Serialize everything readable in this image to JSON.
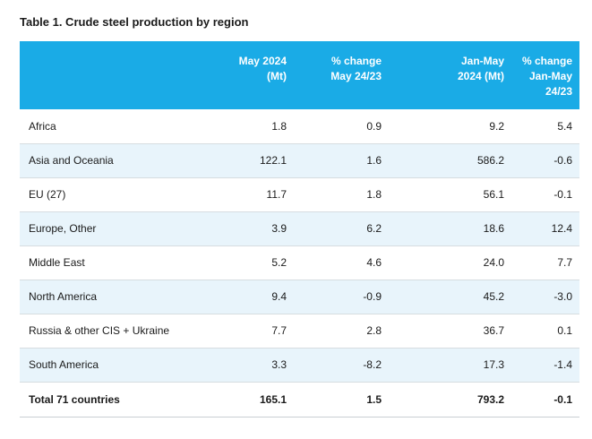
{
  "title": "Table 1. Crude steel production by region",
  "headers": [
    {
      "lines": []
    },
    {
      "lines": [
        "May 2024",
        "(Mt)"
      ]
    },
    {
      "lines": [
        "% change",
        "May 24/23"
      ]
    },
    {
      "lines": [
        "Jan-May",
        "2024 (Mt)"
      ]
    },
    {
      "lines": [
        "% change",
        "Jan-May",
        "24/23"
      ]
    }
  ],
  "rows": [
    {
      "region": "Africa",
      "may_2024": "1.8",
      "change_may": "0.9",
      "jan_may_2024": "9.2",
      "change_jan_may": "5.4"
    },
    {
      "region": "Asia and Oceania",
      "may_2024": "122.1",
      "change_may": "1.6",
      "jan_may_2024": "586.2",
      "change_jan_may": "-0.6"
    },
    {
      "region": "EU (27)",
      "may_2024": "11.7",
      "change_may": "1.8",
      "jan_may_2024": "56.1",
      "change_jan_may": "-0.1"
    },
    {
      "region": "Europe, Other",
      "may_2024": "3.9",
      "change_may": "6.2",
      "jan_may_2024": "18.6",
      "change_jan_may": "12.4"
    },
    {
      "region": "Middle East",
      "may_2024": "5.2",
      "change_may": "4.6",
      "jan_may_2024": "24.0",
      "change_jan_may": "7.7"
    },
    {
      "region": "North America",
      "may_2024": "9.4",
      "change_may": "-0.9",
      "jan_may_2024": "45.2",
      "change_jan_may": "-3.0"
    },
    {
      "region": "Russia & other CIS + Ukraine",
      "may_2024": "7.7",
      "change_may": "2.8",
      "jan_may_2024": "36.7",
      "change_jan_may": "0.1"
    },
    {
      "region": "South America",
      "may_2024": "3.3",
      "change_may": "-8.2",
      "jan_may_2024": "17.3",
      "change_jan_may": "-1.4"
    }
  ],
  "total": {
    "region": "Total 71 countries",
    "may_2024": "165.1",
    "change_may": "1.5",
    "jan_may_2024": "793.2",
    "change_jan_may": "-0.1"
  },
  "colors": {
    "header_bg": "#1aabe6",
    "header_text": "#ffffff",
    "alt_row_bg": "#e8f4fb",
    "row_border": "#d6dce0"
  }
}
